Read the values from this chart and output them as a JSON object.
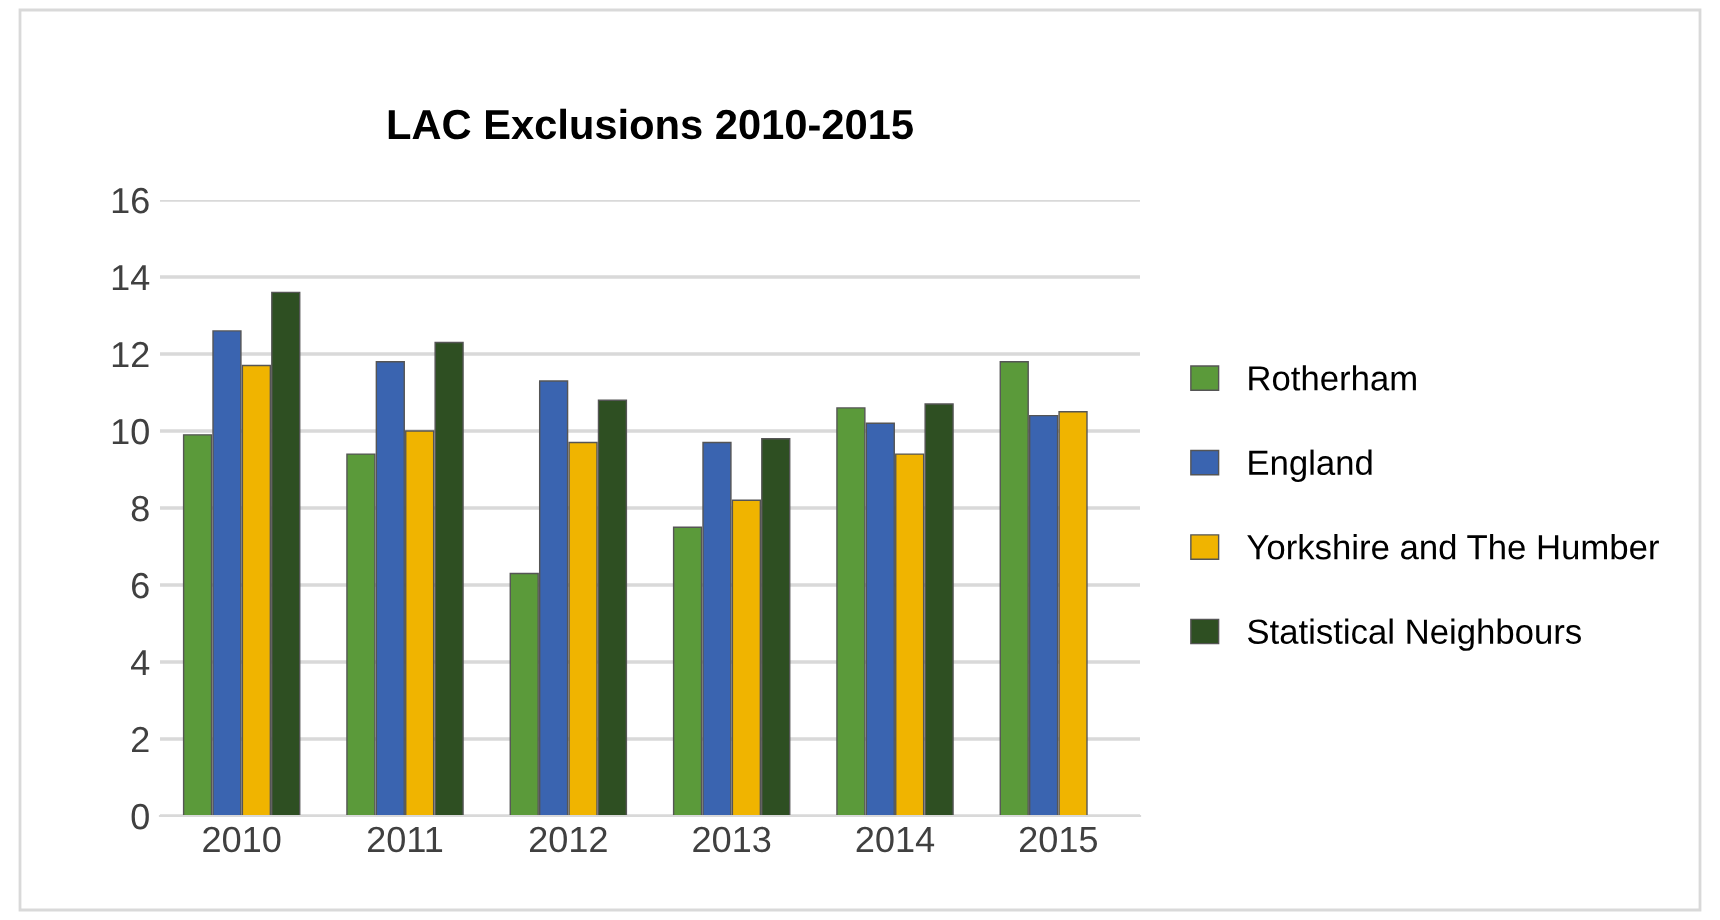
{
  "chart_data": {
    "type": "bar",
    "title": "LAC Exclusions 2010-2015",
    "categories": [
      "2010",
      "2011",
      "2012",
      "2013",
      "2014",
      "2015"
    ],
    "series": [
      {
        "name": "Rotherham",
        "color": "#5b9a3a",
        "values": [
          9.9,
          9.4,
          6.3,
          7.5,
          10.6,
          11.8
        ]
      },
      {
        "name": "England",
        "color": "#3a64b0",
        "values": [
          12.6,
          11.8,
          11.3,
          9.7,
          10.2,
          10.4
        ]
      },
      {
        "name": "Yorkshire and The Humber",
        "color": "#f0b400",
        "values": [
          11.7,
          10.0,
          9.7,
          8.2,
          9.4,
          10.5
        ]
      },
      {
        "name": "Statistical Neighbours",
        "color": "#2e4f22",
        "values": [
          13.6,
          12.3,
          10.8,
          9.8,
          10.7,
          null
        ]
      }
    ],
    "ylim": [
      0,
      16
    ],
    "yticks": [
      0,
      2,
      4,
      6,
      8,
      10,
      12,
      14,
      16
    ],
    "grid": "y",
    "legend": "right"
  }
}
